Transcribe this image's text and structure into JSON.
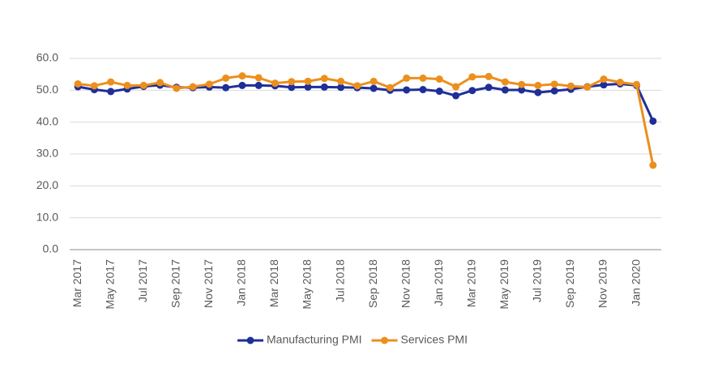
{
  "chart_data": {
    "type": "line",
    "categories": [
      "Mar 2017",
      null,
      "May 2017",
      null,
      "Jul 2017",
      null,
      "Sep 2017",
      null,
      "Nov 2017",
      null,
      "Jan 2018",
      null,
      "Mar 2018",
      null,
      "May 2018",
      null,
      "Jul 2018",
      null,
      "Sep 2018",
      null,
      "Nov 2018",
      null,
      "Jan 2019",
      null,
      "Mar 2019",
      null,
      "May 2019",
      null,
      "Jul 2019",
      null,
      "Sep 2019",
      null,
      "Nov 2019",
      null,
      "Jan 2020",
      null
    ],
    "series": [
      {
        "name": "Manufacturing PMI",
        "color": "#1f2f98",
        "values": [
          51.1,
          50.2,
          49.6,
          50.4,
          51.2,
          51.6,
          50.9,
          50.8,
          51.0,
          50.8,
          51.5,
          51.5,
          51.4,
          50.9,
          51.0,
          51.0,
          50.9,
          50.8,
          50.6,
          50.0,
          50.1,
          50.2,
          49.7,
          48.3,
          49.9,
          50.9,
          50.1,
          50.1,
          49.3,
          49.8,
          50.3,
          51.1,
          51.7,
          52.0,
          51.5,
          40.3
        ]
      },
      {
        "name": "Services PMI",
        "color": "#ec8f1c",
        "values": [
          52.0,
          51.4,
          52.6,
          51.5,
          51.5,
          52.4,
          50.6,
          51.1,
          51.9,
          53.8,
          54.5,
          53.9,
          52.2,
          52.7,
          52.8,
          53.7,
          52.8,
          51.4,
          52.8,
          50.8,
          53.8,
          53.8,
          53.5,
          51.1,
          54.2,
          54.3,
          52.6,
          51.8,
          51.5,
          51.9,
          51.3,
          51.0,
          53.5,
          52.5,
          51.8,
          26.5
        ]
      }
    ],
    "ylim": [
      0,
      60
    ],
    "yticks": [
      {
        "value": 0,
        "label": "0.0"
      },
      {
        "value": 10,
        "label": "10.0"
      },
      {
        "value": 20,
        "label": "20.0"
      },
      {
        "value": 30,
        "label": "30.0"
      },
      {
        "value": 40,
        "label": "40.0"
      },
      {
        "value": 50,
        "label": "50.0"
      },
      {
        "value": 60,
        "label": "60.0"
      }
    ],
    "grid": true,
    "legend": "bottom"
  }
}
